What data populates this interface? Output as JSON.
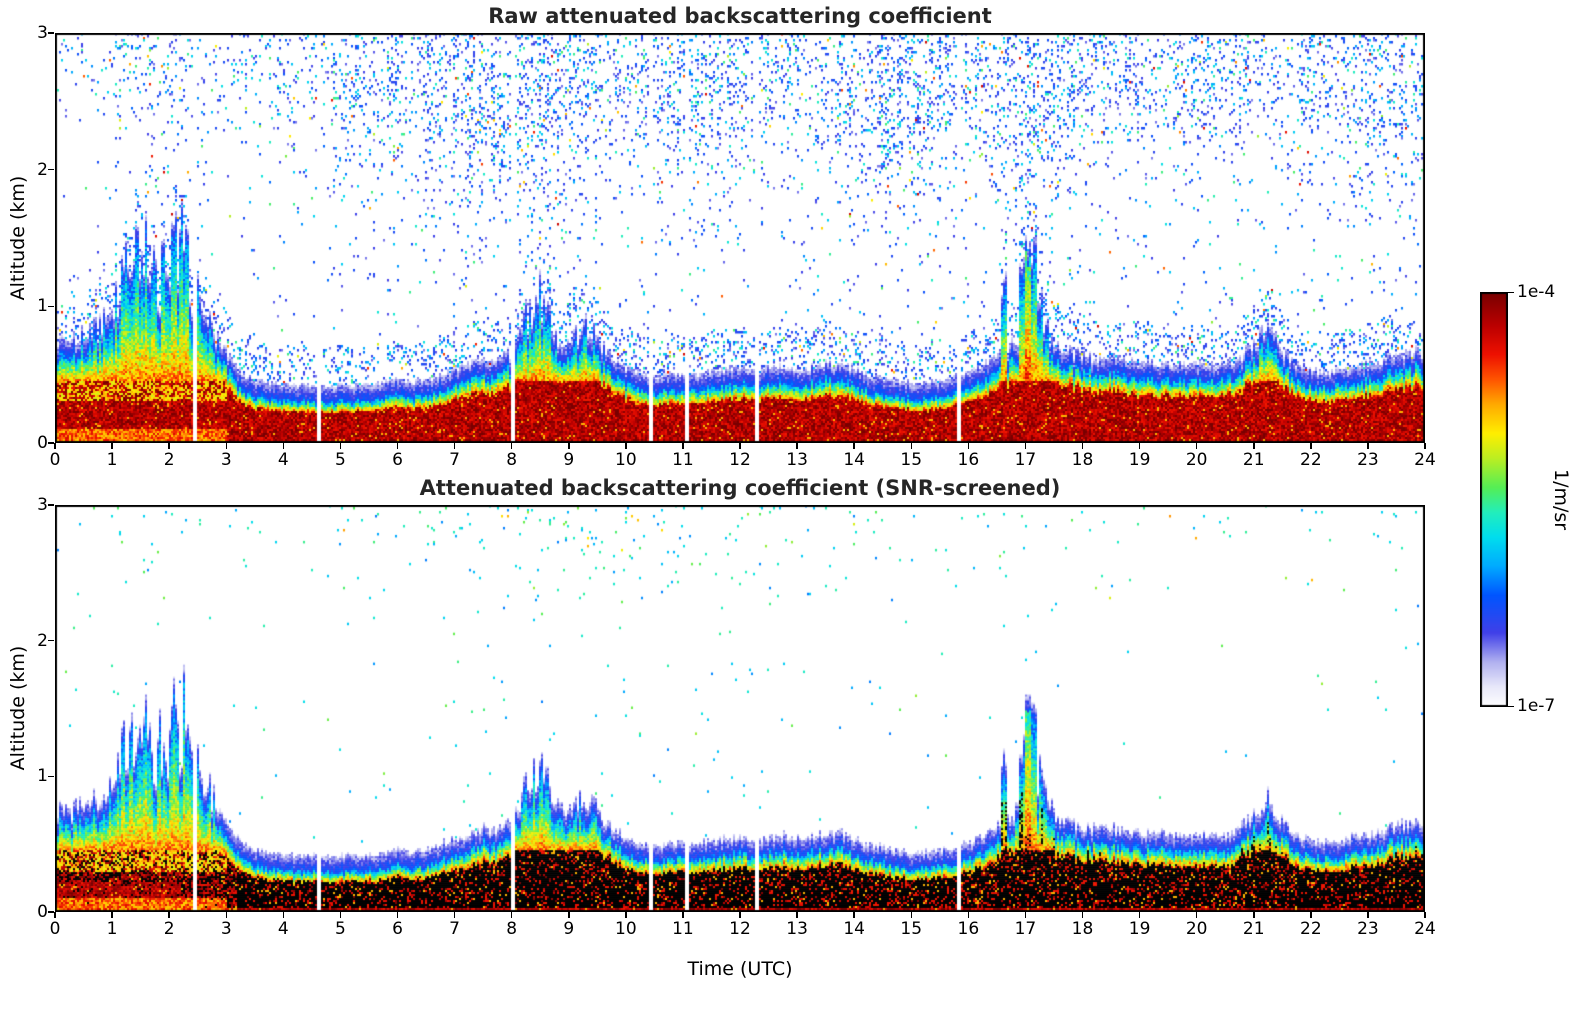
{
  "chart_data": {
    "type": "heatmap",
    "xlabel": "Time (UTC)",
    "ylabel": "Altitude (km)",
    "x_range": [
      0,
      24
    ],
    "y_range": [
      0,
      3
    ],
    "x_ticks": [
      "0",
      "1",
      "2",
      "3",
      "4",
      "5",
      "6",
      "7",
      "8",
      "9",
      "10",
      "11",
      "12",
      "13",
      "14",
      "15",
      "16",
      "17",
      "18",
      "19",
      "20",
      "21",
      "22",
      "23",
      "24"
    ],
    "y_ticks": [
      "0",
      "1",
      "2",
      "3"
    ],
    "colorbar": {
      "label": "1/m/sr",
      "top_tick": "1e-4",
      "bottom_tick": "1e-7",
      "stops": [
        {
          "v": 0.0,
          "c": "#ffffff"
        },
        {
          "v": 0.05,
          "c": "#e8e8fa"
        },
        {
          "v": 0.11,
          "c": "#b0b0f0"
        },
        {
          "v": 0.18,
          "c": "#4040e8"
        },
        {
          "v": 0.27,
          "c": "#0055ff"
        },
        {
          "v": 0.34,
          "c": "#00aaff"
        },
        {
          "v": 0.41,
          "c": "#00ddee"
        },
        {
          "v": 0.47,
          "c": "#22eebb"
        },
        {
          "v": 0.53,
          "c": "#55ee55"
        },
        {
          "v": 0.6,
          "c": "#bbee22"
        },
        {
          "v": 0.66,
          "c": "#ffee00"
        },
        {
          "v": 0.73,
          "c": "#ffaa00"
        },
        {
          "v": 0.79,
          "c": "#ff5500"
        },
        {
          "v": 0.85,
          "c": "#ee1100"
        },
        {
          "v": 0.92,
          "c": "#bb0000"
        },
        {
          "v": 1.0,
          "c": "#780000"
        }
      ]
    },
    "panels": [
      {
        "id": "raw",
        "title": "Raw attenuated backscattering coefficient",
        "screened": false,
        "noise_density_by_hour": [
          0.12,
          0.22,
          0.3,
          0.18,
          0.25,
          0.35,
          0.38,
          0.45,
          0.48,
          0.45,
          0.32,
          0.4,
          0.38,
          0.32,
          0.45,
          0.5,
          0.35,
          0.5,
          0.4,
          0.32,
          0.35,
          0.32,
          0.35,
          0.4,
          0.38
        ]
      },
      {
        "id": "screened",
        "title": "Attenuated backscattering coefficient (SNR-screened)",
        "screened": true,
        "noise_density_by_hour": [
          0.03,
          0.05,
          0.06,
          0.04,
          0.04,
          0.05,
          0.06,
          0.1,
          0.12,
          0.12,
          0.1,
          0.1,
          0.1,
          0.08,
          0.06,
          0.04,
          0.04,
          0.06,
          0.04,
          0.03,
          0.03,
          0.04,
          0.04,
          0.05,
          0.04
        ]
      }
    ],
    "boundary_layer_top_km": {
      "t_step_hours": 0.25,
      "values": [
        0.65,
        0.6,
        0.75,
        0.7,
        0.85,
        1.1,
        1.35,
        1.05,
        1.2,
        1.3,
        0.95,
        0.75,
        0.55,
        0.4,
        0.34,
        0.32,
        0.31,
        0.3,
        0.3,
        0.29,
        0.3,
        0.3,
        0.31,
        0.32,
        0.36,
        0.33,
        0.34,
        0.38,
        0.42,
        0.45,
        0.5,
        0.48,
        0.55,
        0.8,
        1.0,
        0.7,
        0.6,
        0.75,
        0.65,
        0.5,
        0.44,
        0.4,
        0.36,
        0.38,
        0.4,
        0.38,
        0.4,
        0.42,
        0.44,
        0.4,
        0.42,
        0.45,
        0.42,
        0.44,
        0.46,
        0.48,
        0.42,
        0.38,
        0.36,
        0.34,
        0.32,
        0.33,
        0.34,
        0.36,
        0.4,
        0.44,
        0.55,
        0.6,
        0.7,
        0.85,
        0.6,
        0.55,
        0.52,
        0.5,
        0.5,
        0.48,
        0.47,
        0.46,
        0.46,
        0.45,
        0.46,
        0.45,
        0.46,
        0.5,
        0.6,
        0.72,
        0.55,
        0.45,
        0.42,
        0.4,
        0.42,
        0.44,
        0.46,
        0.48,
        0.52,
        0.55,
        0.55
      ]
    },
    "spikes": [
      {
        "t": 16.62,
        "h": 1.05
      },
      {
        "t": 16.95,
        "h": 1.15
      },
      {
        "t": 17.05,
        "h": 1.35,
        "warm": true
      },
      {
        "t": 17.15,
        "h": 1.3
      },
      {
        "t": 17.28,
        "h": 0.95
      }
    ],
    "data_gap_hours": [
      2.45,
      4.62,
      8.02,
      10.45,
      11.08,
      12.3,
      15.85
    ]
  }
}
